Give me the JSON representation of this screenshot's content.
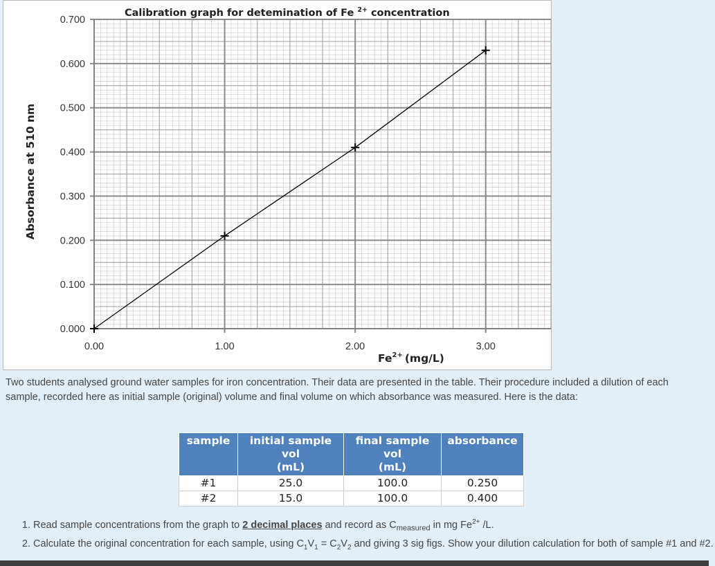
{
  "chart_data": {
    "type": "line",
    "title_main": "Calibration graph for detemination of Fe",
    "title_sup": "2+",
    "title_tail": " concentration",
    "ylabel": "Absorbance at 510 nm",
    "xlabel_main": "Fe",
    "xlabel_sup": "2+",
    "xlabel_tail": "(mg/L)",
    "xlim": [
      0,
      3.5
    ],
    "ylim": [
      0,
      0.7
    ],
    "x_ticks": [
      "0.00",
      "1.00",
      "2.00",
      "3.00"
    ],
    "x_tick_values": [
      0,
      1,
      2,
      3
    ],
    "y_ticks": [
      "0.000",
      "0.100",
      "0.200",
      "0.300",
      "0.400",
      "0.500",
      "0.600",
      "0.700"
    ],
    "y_tick_values": [
      0,
      0.1,
      0.2,
      0.3,
      0.4,
      0.5,
      0.6,
      0.7
    ],
    "grid": true,
    "series": [
      {
        "x": [
          0,
          1,
          2,
          3
        ],
        "y": [
          0.0,
          0.21,
          0.41,
          0.63
        ]
      }
    ],
    "colors": {
      "line": "#000000",
      "major_grid": "#8a8a8a",
      "minor_grid": "#c8c8c8"
    }
  },
  "intro_text": "Two students analysed ground water samples for iron concentration. Their data are presented in the table. Their procedure included a dilution of each sample, recorded here as initial sample (original) volume and final volume on which absorbance was measured. Here is the data:",
  "table": {
    "headers": [
      {
        "line1": "sample",
        "line2": ""
      },
      {
        "line1": "initial sample vol",
        "line2": "(mL)"
      },
      {
        "line1": "final sample vol",
        "line2": "(mL)"
      },
      {
        "line1": "absorbance",
        "line2": ""
      }
    ],
    "rows": [
      [
        "#1",
        "25.0",
        "100.0",
        "0.250"
      ],
      [
        "#2",
        "15.0",
        "100.0",
        "0.400"
      ]
    ],
    "header_color": "#4f81bd"
  },
  "questions": {
    "q1_a": "Read sample concentrations from the graph to ",
    "q1_u": "2 decimal places",
    "q1_b": " and record as C",
    "q1_sub": "measured",
    "q1_c": "  in mg Fe",
    "q1_sup": "2+",
    "q1_d": " /L.",
    "q2_a": "Calculate the original concentration for each sample, using C",
    "q2_s1": "1",
    "q2_b": "V",
    "q2_s2": "1",
    "q2_c": " = C",
    "q2_s3": "2",
    "q2_d": "V",
    "q2_s4": "2",
    "q2_e": " and giving 3 sig figs. Show your dilution calculation for both of sample #1 and #2."
  }
}
